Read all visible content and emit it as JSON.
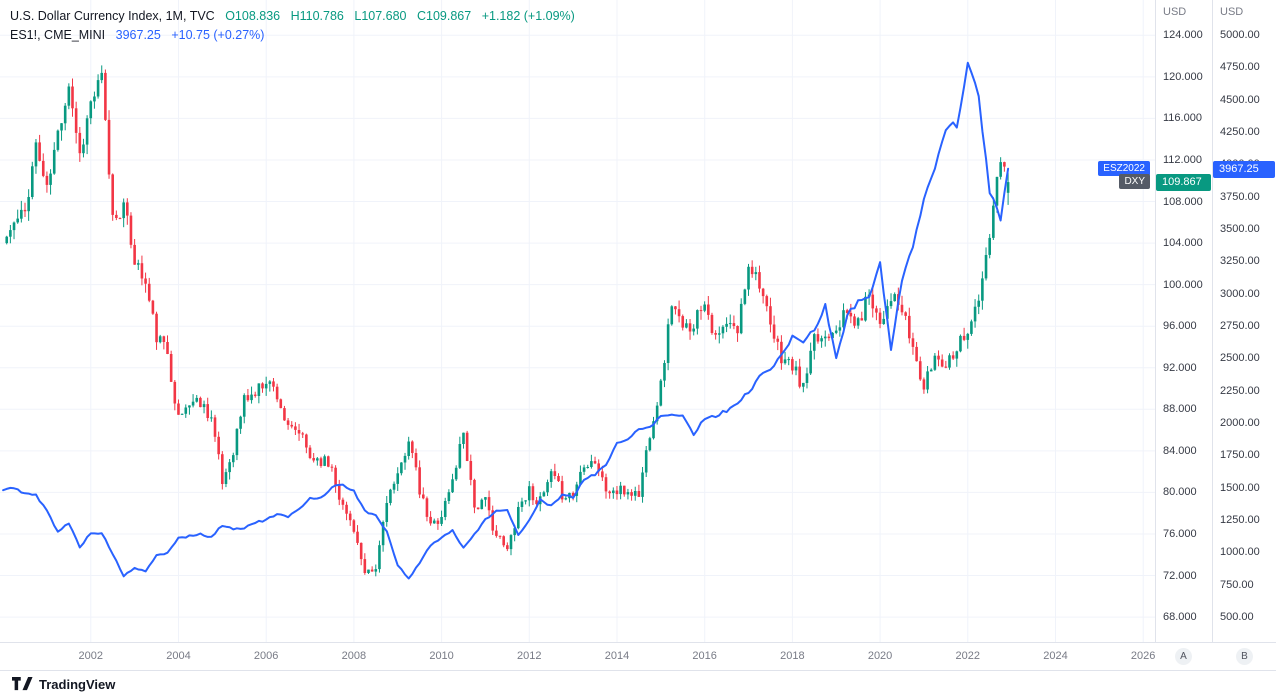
{
  "legend": {
    "row1": {
      "title": "U.S. Dollar Currency Index, 1M, TVC",
      "o": "O108.836",
      "h": "H110.786",
      "l": "L107.680",
      "c": "C109.867",
      "change": "+1.182 (+1.09%)"
    },
    "row2": {
      "title": "ES1!, CME_MINI",
      "price": "3967.25",
      "change": "+10.75 (+0.27%)"
    }
  },
  "axes": {
    "dxy_currency": "USD",
    "es_currency": "USD",
    "scale_a_label": "A",
    "scale_b_label": "B"
  },
  "badges": {
    "es_tag": "ESZ2022",
    "es_price": "3967.25",
    "dxy_tag": "DXY",
    "dxy_price": "109.867"
  },
  "footer": {
    "brand": "TradingView"
  },
  "colors": {
    "up": "#089981",
    "down": "#f23645",
    "es_line": "#2962ff",
    "grid": "#f0f3fa"
  },
  "chart_data": {
    "type": "candlestick+line",
    "title": "U.S. Dollar Currency Index (1M, TVC) with ES1! (CME_MINI) overlay",
    "timeframe": "1M",
    "legend_position": "top-left",
    "grid": true,
    "x_domain": [
      1999.93,
      2026.27
    ],
    "dxy_ylim": [
      65.6,
      127.4
    ],
    "es_ylim": [
      306,
      5272
    ],
    "dxy_axis_ticks": [
      124,
      120,
      116,
      112,
      108,
      104,
      100,
      96,
      92,
      88,
      84,
      80,
      76,
      72,
      68
    ],
    "es_axis_ticks": [
      5000,
      4750,
      4500,
      4250,
      4000,
      3750,
      3500,
      3250,
      3000,
      2750,
      2500,
      2250,
      2000,
      1750,
      1500,
      1250,
      1000,
      750,
      500
    ],
    "year_ticks": [
      2002,
      2004,
      2006,
      2008,
      2010,
      2012,
      2014,
      2016,
      2018,
      2020,
      2022,
      2024,
      2026
    ],
    "series": [
      {
        "name": "U.S. Dollar Currency Index",
        "symbol": "DXY",
        "exchange": "TVC",
        "type": "candlestick",
        "up_color": "#089981",
        "down_color": "#f23645",
        "last": {
          "o": 108.836,
          "h": 110.786,
          "l": 107.68,
          "c": 109.867,
          "change": 1.182,
          "change_pct": 1.09
        },
        "quarterly_closes": [
          [
            2000.0,
            104.0
          ],
          [
            2000.25,
            105.8
          ],
          [
            2000.5,
            107.0
          ],
          [
            2000.75,
            113.5
          ],
          [
            2001.0,
            109.0
          ],
          [
            2001.25,
            114.5
          ],
          [
            2001.5,
            119.5
          ],
          [
            2001.75,
            112.5
          ],
          [
            2002.0,
            117.5
          ],
          [
            2002.25,
            119.8
          ],
          [
            2002.5,
            106.5
          ],
          [
            2002.75,
            107.5
          ],
          [
            2003.0,
            102.5
          ],
          [
            2003.25,
            100.0
          ],
          [
            2003.5,
            95.0
          ],
          [
            2003.75,
            93.5
          ],
          [
            2004.0,
            87.0
          ],
          [
            2004.25,
            88.7
          ],
          [
            2004.5,
            88.8
          ],
          [
            2004.75,
            87.3
          ],
          [
            2005.0,
            80.9
          ],
          [
            2005.25,
            84.2
          ],
          [
            2005.5,
            89.0
          ],
          [
            2005.75,
            89.5
          ],
          [
            2006.0,
            91.0
          ],
          [
            2006.25,
            89.5
          ],
          [
            2006.5,
            85.9
          ],
          [
            2006.75,
            85.8
          ],
          [
            2007.0,
            83.4
          ],
          [
            2007.25,
            83.2
          ],
          [
            2007.5,
            82.5
          ],
          [
            2007.75,
            78.5
          ],
          [
            2008.0,
            76.7
          ],
          [
            2008.25,
            71.8
          ],
          [
            2008.5,
            72.5
          ],
          [
            2008.75,
            79.5
          ],
          [
            2009.0,
            81.2
          ],
          [
            2009.25,
            85.4
          ],
          [
            2009.5,
            80.0
          ],
          [
            2009.75,
            76.7
          ],
          [
            2010.0,
            77.9
          ],
          [
            2010.25,
            81.1
          ],
          [
            2010.5,
            86.0
          ],
          [
            2010.75,
            78.7
          ],
          [
            2011.0,
            79.0
          ],
          [
            2011.25,
            75.9
          ],
          [
            2011.5,
            74.3
          ],
          [
            2011.75,
            78.6
          ],
          [
            2012.0,
            80.2
          ],
          [
            2012.25,
            79.0
          ],
          [
            2012.5,
            81.6
          ],
          [
            2012.75,
            79.9
          ],
          [
            2013.0,
            79.8
          ],
          [
            2013.25,
            83.0
          ],
          [
            2013.5,
            83.1
          ],
          [
            2013.75,
            80.2
          ],
          [
            2014.0,
            80.0
          ],
          [
            2014.25,
            80.1
          ],
          [
            2014.5,
            79.8
          ],
          [
            2014.75,
            85.9
          ],
          [
            2015.0,
            90.3
          ],
          [
            2015.25,
            98.4
          ],
          [
            2015.5,
            95.5
          ],
          [
            2015.75,
            96.4
          ],
          [
            2016.0,
            98.7
          ],
          [
            2016.25,
            94.6
          ],
          [
            2016.5,
            96.1
          ],
          [
            2016.75,
            95.5
          ],
          [
            2017.0,
            102.2
          ],
          [
            2017.25,
            100.4
          ],
          [
            2017.5,
            95.6
          ],
          [
            2017.75,
            93.1
          ],
          [
            2018.0,
            92.1
          ],
          [
            2018.25,
            90.0
          ],
          [
            2018.5,
            94.5
          ],
          [
            2018.75,
            95.1
          ],
          [
            2019.0,
            96.2
          ],
          [
            2019.25,
            97.2
          ],
          [
            2019.5,
            96.1
          ],
          [
            2019.75,
            99.4
          ],
          [
            2020.0,
            96.4
          ],
          [
            2020.25,
            99.0
          ],
          [
            2020.5,
            97.4
          ],
          [
            2020.75,
            93.9
          ],
          [
            2021.0,
            89.9
          ],
          [
            2021.25,
            93.2
          ],
          [
            2021.5,
            92.4
          ],
          [
            2021.75,
            94.2
          ],
          [
            2022.0,
            95.7
          ],
          [
            2022.25,
            98.3
          ],
          [
            2022.5,
            104.7
          ],
          [
            2022.75,
            112.1
          ],
          [
            2022.92,
            109.867
          ]
        ]
      },
      {
        "name": "ES1!",
        "symbol": "ESZ2022",
        "exchange": "CME_MINI",
        "type": "line",
        "color": "#2962ff",
        "last_value": 3967.25,
        "last_change": 10.75,
        "last_change_pct": 0.27,
        "quarterly_closes": [
          [
            2000.0,
            1480
          ],
          [
            2000.25,
            1500
          ],
          [
            2000.5,
            1455
          ],
          [
            2000.75,
            1440
          ],
          [
            2001.0,
            1320
          ],
          [
            2001.25,
            1160
          ],
          [
            2001.5,
            1225
          ],
          [
            2001.75,
            1040
          ],
          [
            2002.0,
            1150
          ],
          [
            2002.25,
            1147
          ],
          [
            2002.5,
            990
          ],
          [
            2002.75,
            815
          ],
          [
            2003.0,
            880
          ],
          [
            2003.25,
            850
          ],
          [
            2003.5,
            975
          ],
          [
            2003.75,
            995
          ],
          [
            2004.0,
            1110
          ],
          [
            2004.25,
            1125
          ],
          [
            2004.5,
            1140
          ],
          [
            2004.75,
            1115
          ],
          [
            2005.0,
            1210
          ],
          [
            2005.25,
            1180
          ],
          [
            2005.5,
            1190
          ],
          [
            2005.75,
            1230
          ],
          [
            2006.0,
            1250
          ],
          [
            2006.25,
            1295
          ],
          [
            2006.5,
            1270
          ],
          [
            2006.75,
            1335
          ],
          [
            2007.0,
            1420
          ],
          [
            2007.25,
            1420
          ],
          [
            2007.5,
            1505
          ],
          [
            2007.75,
            1525
          ],
          [
            2008.0,
            1470
          ],
          [
            2008.25,
            1320
          ],
          [
            2008.5,
            1280
          ],
          [
            2008.75,
            1165
          ],
          [
            2009.0,
            900
          ],
          [
            2009.25,
            795
          ],
          [
            2009.5,
            920
          ],
          [
            2009.75,
            1055
          ],
          [
            2010.0,
            1115
          ],
          [
            2010.25,
            1170
          ],
          [
            2010.5,
            1030
          ],
          [
            2010.75,
            1140
          ],
          [
            2011.0,
            1255
          ],
          [
            2011.25,
            1325
          ],
          [
            2011.5,
            1320
          ],
          [
            2011.75,
            1130
          ],
          [
            2012.0,
            1255
          ],
          [
            2012.25,
            1405
          ],
          [
            2012.5,
            1360
          ],
          [
            2012.75,
            1440
          ],
          [
            2013.0,
            1425
          ],
          [
            2013.25,
            1565
          ],
          [
            2013.5,
            1605
          ],
          [
            2013.75,
            1680
          ],
          [
            2014.0,
            1840
          ],
          [
            2014.25,
            1870
          ],
          [
            2014.5,
            1960
          ],
          [
            2014.75,
            1970
          ],
          [
            2015.0,
            2055
          ],
          [
            2015.25,
            2065
          ],
          [
            2015.5,
            2060
          ],
          [
            2015.75,
            1910
          ],
          [
            2016.0,
            2040
          ],
          [
            2016.25,
            2055
          ],
          [
            2016.5,
            2095
          ],
          [
            2016.75,
            2160
          ],
          [
            2017.0,
            2235
          ],
          [
            2017.25,
            2360
          ],
          [
            2017.5,
            2420
          ],
          [
            2017.75,
            2515
          ],
          [
            2018.0,
            2670
          ],
          [
            2018.25,
            2635
          ],
          [
            2018.5,
            2715
          ],
          [
            2018.75,
            2905
          ],
          [
            2019.0,
            2495
          ],
          [
            2019.25,
            2835
          ],
          [
            2019.5,
            2940
          ],
          [
            2019.75,
            2975
          ],
          [
            2020.0,
            3230
          ],
          [
            2020.25,
            2580
          ],
          [
            2020.5,
            3100
          ],
          [
            2020.75,
            3360
          ],
          [
            2021.0,
            3750
          ],
          [
            2021.25,
            3965
          ],
          [
            2021.5,
            4290
          ],
          [
            2021.75,
            4305
          ],
          [
            2022.0,
            4765
          ],
          [
            2022.25,
            4530
          ],
          [
            2022.5,
            3785
          ],
          [
            2022.75,
            3585
          ],
          [
            2022.92,
            3967.25
          ]
        ]
      }
    ]
  }
}
